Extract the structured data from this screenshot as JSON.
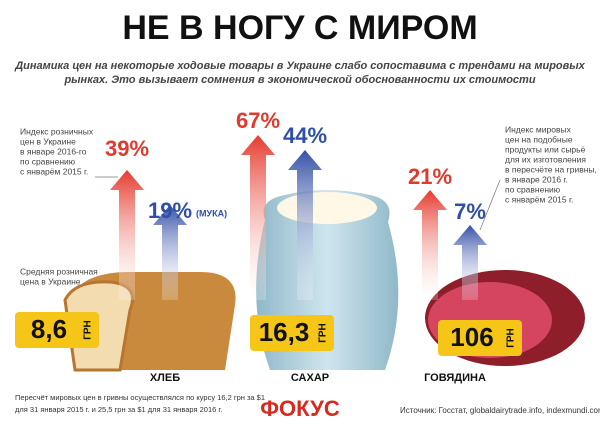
{
  "title": "НЕ В НОГУ С МИРОМ",
  "subtitle": [
    "Динамика цен на некоторые ходовые товары в Украине слабо сопоставима с трендами на мировых",
    "рынках. Это вызывает сомнения в экономической обоснованности их стоимости"
  ],
  "retail_index_note": [
    "Индекс розничных",
    "цен в Украине",
    "в январе 2016-го",
    "по сравнению",
    "с январём 2015 г."
  ],
  "avg_price_note": [
    "Средняя розничная",
    "цена в Украине"
  ],
  "world_index_note": [
    "Индекс мировых",
    "цен на подобные",
    "продукты или сырьё",
    "для их изготовления",
    "в пересчёте на гривны,",
    "в январе 2016 г.",
    "по сравнению",
    "с январём 2015 г."
  ],
  "items": [
    {
      "name": "ХЛЕБ",
      "retail_change": "39%",
      "world_change": "19%",
      "world_note": "(МУКА)",
      "price": "8,6",
      "unit": "ГРН"
    },
    {
      "name": "САХАР",
      "retail_change": "67%",
      "world_change": "44%",
      "price": "16,3",
      "unit": "ГРН"
    },
    {
      "name": "ГОВЯДИНА",
      "retail_change": "21%",
      "world_change": "7%",
      "price": "106",
      "unit": "ГРН"
    }
  ],
  "footnote": [
    "Пересчёт мировых цен в гривны осуществлялся по курсу 16,2 грн за $1",
    "для 31 января 2015 г. и 25,5 грн за $1 для 31 января 2016 г."
  ],
  "logo": "ФОКУС",
  "source": "Источник: Госстат, globaldairytrade.info, indexmundi.com"
}
